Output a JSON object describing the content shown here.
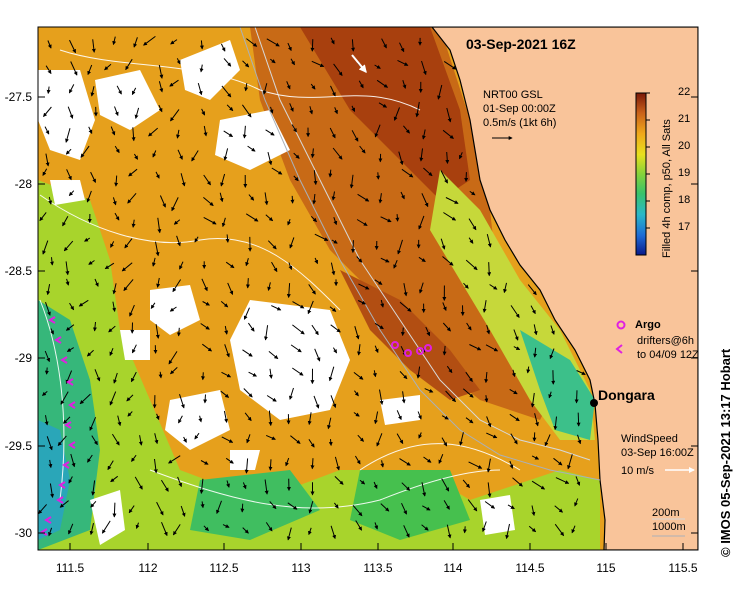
{
  "map": {
    "title": "03-Sep-2021 16Z",
    "y_ticks": [
      "-27.5",
      "-28",
      "-28.5",
      "-29",
      "-29.5",
      "-30"
    ],
    "x_ticks": [
      "111.5",
      "112",
      "112.5",
      "113",
      "113.5",
      "114",
      "114.5",
      "115",
      "115.5"
    ],
    "current_legend": {
      "line1": "NRT00 GSL",
      "line2": "01-Sep 00:00Z",
      "line3": "0.5m/s (1kt 6h)"
    },
    "colorbar": {
      "ticks": [
        "22",
        "21",
        "20",
        "19",
        "18",
        "17"
      ],
      "label": "Filled 4h comp, p50, All Sats",
      "colors": [
        "#0a1a8a",
        "#1e6bd6",
        "#2ab8c8",
        "#39c36a",
        "#86d23a",
        "#e8e01e",
        "#f0a81a",
        "#d07818",
        "#a83a10",
        "#7a1808"
      ]
    },
    "argo_legend": {
      "argo": "Argo",
      "drifters_line1": "drifters@6h",
      "drifters_line2": "to 04/09 12Z"
    },
    "place": "Dongara",
    "wind_legend": {
      "line1": "WindSpeed",
      "line2": "03-Sep 16:00Z",
      "line3": "10 m/s"
    },
    "depth_legend": {
      "line1": "200m",
      "line2": "1000m"
    },
    "credit": "© IMOS 05-Sep-2021 13:17 Hobart",
    "land_color": "#f9c49a",
    "marker_color": "#e020e0"
  }
}
